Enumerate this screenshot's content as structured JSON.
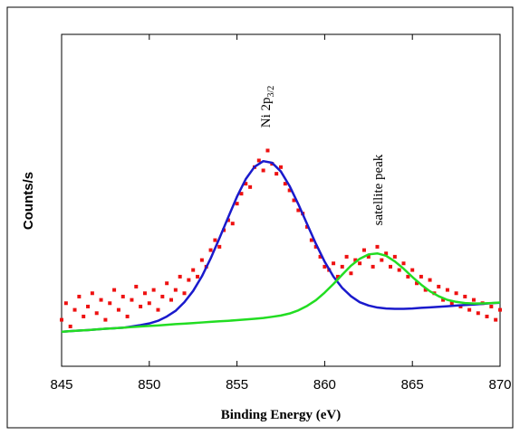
{
  "chart_data": {
    "type": "scatter",
    "xlabel": "Binding Energy (eV)",
    "ylabel": "Counts/s",
    "annotations": [
      {
        "text": "Ni 2p",
        "subscript": "3/2"
      },
      {
        "text": "satellite peak"
      }
    ],
    "xlim": [
      845,
      870
    ],
    "xticks": [
      845,
      850,
      855,
      860,
      865,
      870
    ],
    "ylim": [
      0,
      100
    ],
    "series": [
      {
        "type": "scatter",
        "color": "#ee1111",
        "x": [
          845,
          845.25,
          845.5,
          845.75,
          846,
          846.25,
          846.5,
          846.75,
          847,
          847.25,
          847.5,
          847.75,
          848,
          848.25,
          848.5,
          848.75,
          849,
          849.25,
          849.5,
          849.75,
          850,
          850.25,
          850.5,
          850.75,
          851,
          851.25,
          851.5,
          851.75,
          852,
          852.25,
          852.5,
          852.75,
          853,
          853.25,
          853.5,
          853.75,
          854,
          854.25,
          854.5,
          854.75,
          855,
          855.25,
          855.5,
          855.75,
          856,
          856.25,
          856.5,
          856.75,
          857,
          857.25,
          857.5,
          857.75,
          858,
          858.25,
          858.5,
          858.75,
          859,
          859.25,
          859.5,
          859.75,
          860,
          860.25,
          860.5,
          860.75,
          861,
          861.25,
          861.5,
          861.75,
          862,
          862.25,
          862.5,
          862.75,
          863,
          863.25,
          863.5,
          863.75,
          864,
          864.25,
          864.5,
          864.75,
          865,
          865.25,
          865.5,
          865.75,
          866,
          866.25,
          866.5,
          866.75,
          867,
          867.25,
          867.5,
          867.75,
          868,
          868.25,
          868.5,
          868.75,
          869,
          869.25,
          869.5,
          869.75,
          870
        ],
        "values": [
          14,
          19,
          12,
          17,
          21,
          15,
          18,
          22,
          16,
          20,
          14,
          19,
          23,
          17,
          21,
          15,
          20,
          24,
          18,
          22,
          19,
          23,
          17,
          21,
          25,
          20,
          23,
          27,
          22,
          26,
          29,
          27,
          32,
          30,
          35,
          38,
          36,
          41,
          44,
          43,
          49,
          52,
          55,
          54,
          60,
          62,
          59,
          65,
          61,
          58,
          60,
          55,
          53,
          50,
          47,
          46,
          42,
          38,
          36,
          33,
          30,
          29,
          31,
          27,
          30,
          33,
          28,
          32,
          31,
          35,
          33,
          30,
          36,
          32,
          34,
          30,
          33,
          29,
          31,
          27,
          29,
          25,
          27,
          23,
          26,
          22,
          24,
          20,
          23,
          19,
          22,
          18,
          21,
          17,
          20,
          16,
          19,
          15,
          18,
          14,
          17
        ]
      },
      {
        "type": "line",
        "color": "#1a1acc",
        "x": [
          845,
          845.5,
          846,
          846.5,
          847,
          847.5,
          848,
          848.5,
          849,
          849.5,
          850,
          850.5,
          851,
          851.5,
          852,
          852.5,
          853,
          853.5,
          854,
          854.5,
          855,
          855.5,
          856,
          856.5,
          857,
          857.5,
          858,
          858.5,
          859,
          859.5,
          860,
          860.5,
          861,
          861.5,
          862,
          862.5,
          863,
          863.5,
          864,
          864.5,
          865,
          865.5,
          866,
          866.5,
          867,
          867.5,
          868,
          868.5,
          869,
          869.5,
          870
        ],
        "values": [
          10.4,
          10.6,
          10.75,
          10.9,
          11.1,
          11.3,
          11.45,
          11.6,
          12.0,
          12.4,
          12.9,
          13.7,
          15.0,
          16.7,
          19.3,
          22.7,
          27.1,
          32.5,
          38.6,
          44.9,
          51.1,
          56.4,
          60.1,
          61.8,
          61.3,
          58.7,
          54.3,
          48.8,
          42.8,
          36.9,
          31.5,
          27.0,
          23.6,
          21.1,
          19.3,
          18.3,
          17.7,
          17.4,
          17.3,
          17.3,
          17.4,
          17.6,
          17.75,
          17.9,
          18.1,
          18.3,
          18.45,
          18.6,
          18.8,
          19.0,
          19.15
        ]
      },
      {
        "type": "line",
        "color": "#22dd22",
        "x": [
          845,
          845.5,
          846,
          846.5,
          847,
          847.5,
          848,
          848.5,
          849,
          849.5,
          850,
          850.5,
          851,
          851.5,
          852,
          852.5,
          853,
          853.5,
          854,
          854.5,
          855,
          855.5,
          856,
          856.5,
          857,
          857.5,
          858,
          858.5,
          859,
          859.5,
          860,
          860.5,
          861,
          861.5,
          862,
          862.5,
          863,
          863.5,
          864,
          864.5,
          865,
          865.5,
          866,
          866.5,
          867,
          867.5,
          868,
          868.5,
          869,
          869.5,
          870
        ],
        "values": [
          10.4,
          10.6,
          10.75,
          10.9,
          11.1,
          11.3,
          11.45,
          11.6,
          11.8,
          12.0,
          12.15,
          12.3,
          12.5,
          12.7,
          12.85,
          13.0,
          13.2,
          13.4,
          13.55,
          13.7,
          13.9,
          14.1,
          14.3,
          14.55,
          14.9,
          15.3,
          15.9,
          16.85,
          18.2,
          19.9,
          22.2,
          24.8,
          27.6,
          30.3,
          32.4,
          33.7,
          34.0,
          33.3,
          31.6,
          29.4,
          26.9,
          24.6,
          22.6,
          21.1,
          20.0,
          19.4,
          19.05,
          18.9,
          18.95,
          19.05,
          19.2
        ]
      }
    ]
  }
}
